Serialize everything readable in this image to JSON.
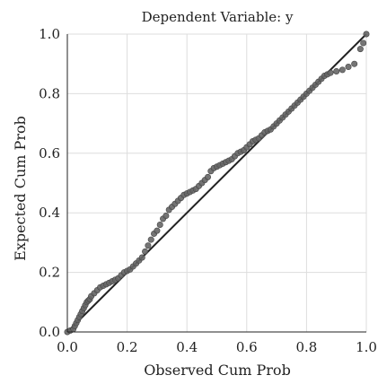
{
  "chart_data": {
    "type": "scatter",
    "title": "Dependent Variable: y",
    "xlabel": "Observed Cum Prob",
    "ylabel": "Expected Cum Prob",
    "xlim": [
      0,
      1
    ],
    "ylim": [
      0,
      1
    ],
    "x_ticks": [
      "0.0",
      "0.2",
      "0.4",
      "0.6",
      "0.8",
      "1.0"
    ],
    "y_ticks": [
      "0.0",
      "0.2",
      "0.4",
      "0.6",
      "0.8",
      "1.0"
    ],
    "grid": true,
    "reference_line": {
      "x": [
        0,
        1
      ],
      "y": [
        0,
        1
      ]
    },
    "colors": {
      "points": "#666666",
      "point_stroke": "#444444",
      "line": "#222222",
      "grid": "#dddddd",
      "axis": "#222222"
    },
    "series": [
      {
        "x": [
          0.0,
          0.01,
          0.02,
          0.025,
          0.03,
          0.035,
          0.04,
          0.045,
          0.05,
          0.055,
          0.06,
          0.065,
          0.07,
          0.075,
          0.08,
          0.09,
          0.1,
          0.11,
          0.12,
          0.13,
          0.14,
          0.15,
          0.16,
          0.17,
          0.18,
          0.19,
          0.2,
          0.21,
          0.22,
          0.23,
          0.24,
          0.25,
          0.26,
          0.27,
          0.28,
          0.29,
          0.3,
          0.31,
          0.32,
          0.33,
          0.34,
          0.35,
          0.36,
          0.37,
          0.38,
          0.39,
          0.4,
          0.41,
          0.42,
          0.43,
          0.44,
          0.45,
          0.46,
          0.47,
          0.48,
          0.49,
          0.5,
          0.51,
          0.52,
          0.53,
          0.54,
          0.55,
          0.56,
          0.57,
          0.58,
          0.59,
          0.6,
          0.61,
          0.62,
          0.63,
          0.64,
          0.65,
          0.66,
          0.67,
          0.68,
          0.69,
          0.7,
          0.71,
          0.72,
          0.73,
          0.74,
          0.75,
          0.76,
          0.77,
          0.78,
          0.79,
          0.8,
          0.81,
          0.82,
          0.83,
          0.84,
          0.85,
          0.86,
          0.87,
          0.88,
          0.9,
          0.92,
          0.94,
          0.96,
          0.98,
          0.99,
          1.0
        ],
        "y": [
          0.0,
          0.005,
          0.01,
          0.02,
          0.03,
          0.04,
          0.05,
          0.06,
          0.07,
          0.08,
          0.09,
          0.1,
          0.105,
          0.11,
          0.12,
          0.13,
          0.14,
          0.15,
          0.155,
          0.16,
          0.165,
          0.17,
          0.175,
          0.18,
          0.19,
          0.2,
          0.205,
          0.21,
          0.22,
          0.23,
          0.24,
          0.25,
          0.27,
          0.29,
          0.31,
          0.33,
          0.34,
          0.36,
          0.38,
          0.39,
          0.41,
          0.42,
          0.43,
          0.44,
          0.45,
          0.46,
          0.465,
          0.47,
          0.475,
          0.48,
          0.49,
          0.5,
          0.51,
          0.52,
          0.54,
          0.55,
          0.555,
          0.56,
          0.565,
          0.57,
          0.575,
          0.58,
          0.59,
          0.6,
          0.605,
          0.61,
          0.62,
          0.63,
          0.64,
          0.645,
          0.65,
          0.66,
          0.67,
          0.675,
          0.68,
          0.69,
          0.7,
          0.71,
          0.72,
          0.73,
          0.74,
          0.75,
          0.76,
          0.77,
          0.78,
          0.79,
          0.8,
          0.81,
          0.82,
          0.83,
          0.84,
          0.85,
          0.86,
          0.865,
          0.87,
          0.875,
          0.88,
          0.89,
          0.9,
          0.95,
          0.97,
          1.0
        ]
      }
    ]
  }
}
